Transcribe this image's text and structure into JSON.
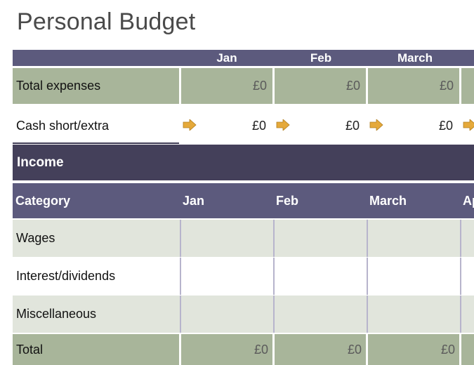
{
  "title": "Personal Budget",
  "header_months": [
    "Jan",
    "Feb",
    "March"
  ],
  "expenses": {
    "total_label": "Total expenses",
    "total_values": [
      "£0",
      "£0",
      "£0"
    ],
    "cash_label": "Cash short/extra",
    "cash_values": [
      "£0",
      "£0",
      "£0"
    ],
    "arrow_color": "#e5a93a"
  },
  "income": {
    "section_title": "Income",
    "columns": [
      "Category",
      "Jan",
      "Feb",
      "March",
      "Ap"
    ],
    "rows": [
      {
        "label": "Wages"
      },
      {
        "label": "Interest/dividends"
      },
      {
        "label": "Miscellaneous"
      }
    ],
    "total_label": "Total",
    "total_values": [
      "£0",
      "£0",
      "£0"
    ]
  },
  "colors": {
    "header_purple": "#5c5a7d",
    "band_dark": "#44405a",
    "total_green": "#a8b59a",
    "row_shade": "#e1e5dc"
  }
}
